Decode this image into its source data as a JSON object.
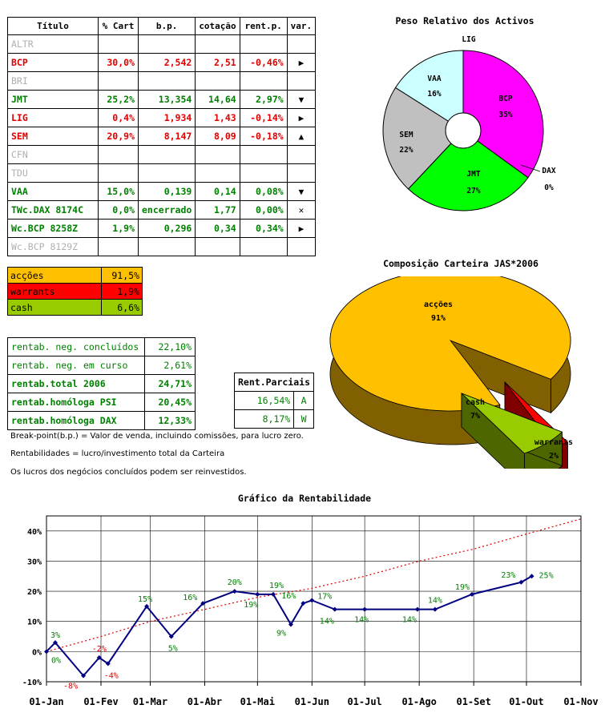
{
  "portfolio": {
    "headers": [
      "Título",
      "% Cart",
      "b.p.",
      "cotação",
      "rent.p.",
      "var."
    ],
    "rows": [
      {
        "name": "ALTR",
        "pct": "",
        "bp": "",
        "cot": "",
        "rent": "",
        "var": "",
        "style": "x"
      },
      {
        "name": "BCP",
        "pct": "30,0%",
        "bp": "2,542",
        "cot": "2,51",
        "rent": "-0,46%",
        "var": "▶",
        "style": "r"
      },
      {
        "name": "BRI",
        "pct": "",
        "bp": "",
        "cot": "",
        "rent": "",
        "var": "",
        "style": "x"
      },
      {
        "name": "JMT",
        "pct": "25,2%",
        "bp": "13,354",
        "cot": "14,64",
        "rent": "2,97%",
        "var": "▼",
        "style": "g"
      },
      {
        "name": "LIG",
        "pct": "0,4%",
        "bp": "1,934",
        "cot": "1,43",
        "rent": "-0,14%",
        "var": "▶",
        "style": "r"
      },
      {
        "name": "SEM",
        "pct": "20,9%",
        "bp": "8,147",
        "cot": "8,09",
        "rent": "-0,18%",
        "var": "▲",
        "style": "r"
      },
      {
        "name": "CFN",
        "pct": "",
        "bp": "",
        "cot": "",
        "rent": "",
        "var": "",
        "style": "x"
      },
      {
        "name": "TDU",
        "pct": "",
        "bp": "",
        "cot": "",
        "rent": "",
        "var": "",
        "style": "x"
      },
      {
        "name": "VAA",
        "pct": "15,0%",
        "bp": "0,139",
        "cot": "0,14",
        "rent": "0,08%",
        "var": "▼",
        "style": "g"
      },
      {
        "name": "TWc.DAX 8174C",
        "pct": "0,0%",
        "bp": "encerrado",
        "cot": "1,77",
        "rent": "0,00%",
        "var": "✕",
        "style": "g"
      },
      {
        "name": "Wc.BCP 8258Z",
        "pct": "1,9%",
        "bp": "0,296",
        "cot": "0,34",
        "rent": "0,34%",
        "var": "▶",
        "style": "g"
      },
      {
        "name": "Wc.BCP 8129Z",
        "pct": "",
        "bp": "",
        "cot": "",
        "rent": "",
        "var": "",
        "style": "x"
      }
    ]
  },
  "allocation": [
    {
      "label": "acções",
      "value": "91,5%",
      "color": "#ffc000"
    },
    {
      "label": "warrants",
      "value": "1,9%",
      "color": "#ff0000"
    },
    {
      "label": "cash",
      "value": "6,6%",
      "color": "#99cc00"
    }
  ],
  "rentab": [
    {
      "label": "rentab. neg. concluídos",
      "value": "22,10%",
      "bold": false
    },
    {
      "label": "rentab. neg. em curso",
      "value": "2,61%",
      "bold": false
    },
    {
      "label": "rentab.total 2006",
      "value": "24,71%",
      "bold": true
    },
    {
      "label": "rentab.homóloga PSI",
      "value": "20,45%",
      "bold": true
    },
    {
      "label": "rentab.homóloga DAX",
      "value": "12,33%",
      "bold": true
    }
  ],
  "parciais": {
    "header": "Rent.Parciais",
    "rows": [
      {
        "value": "16,54%",
        "tag": "A"
      },
      {
        "value": "8,17%",
        "tag": "W"
      }
    ]
  },
  "notes": [
    "Break-point(b.p.) = Valor de venda, incluindo comissões, para lucro zero.",
    "Rentabilidades = lucro/investimento total da Carteira",
    "Os lucros dos negócios concluídos podem ser reinvestidos."
  ],
  "chart_data": [
    {
      "type": "pie",
      "title": "Peso Relativo dos Activos",
      "labels": [
        "LIG",
        "BCP",
        "DAX",
        "JMT",
        "SEM",
        "VAA"
      ],
      "values": [
        0,
        35,
        0,
        27,
        22,
        16
      ],
      "value_labels": [
        "0%",
        "35%",
        "0%",
        "27%",
        "22%",
        "16%"
      ],
      "colors": [
        "#ff99cc",
        "#ff00ff",
        "#ffcc00",
        "#00ff00",
        "#c0c0c0",
        "#ccffff"
      ],
      "donut": true
    },
    {
      "type": "pie",
      "title": "Composição Carteira JAS*2006",
      "labels": [
        "acções",
        "warrants",
        "cash"
      ],
      "values": [
        91,
        2,
        7
      ],
      "value_labels": [
        "91%",
        "2%",
        "7%"
      ],
      "colors": [
        "#ffc000",
        "#ff0000",
        "#99cc00"
      ],
      "style": "3d-exploded"
    },
    {
      "type": "line",
      "title": "Gráfico da Rentabilidade",
      "x_ticks": [
        "01-Jan",
        "01-Fev",
        "01-Mar",
        "01-Abr",
        "01-Mai",
        "01-Jun",
        "01-Jul",
        "01-Ago",
        "01-Set",
        "01-Out",
        "01-Nov"
      ],
      "y_ticks": [
        "-10%",
        "0%",
        "10%",
        "20%",
        "30%",
        "40%"
      ],
      "ylim": [
        -10,
        45
      ],
      "grid": true,
      "series": [
        {
          "name": "",
          "color": "#000080",
          "points": [
            {
              "x": "2006-01-01",
              "y": 0,
              "label": "0%"
            },
            {
              "x": "2006-01-06",
              "y": 3,
              "label": "3%"
            },
            {
              "x": "2006-01-22",
              "y": -8,
              "label": "-8%"
            },
            {
              "x": "2006-01-31",
              "y": -2,
              "label": "-2%"
            },
            {
              "x": "2006-02-05",
              "y": -4,
              "label": "-4%"
            },
            {
              "x": "2006-02-27",
              "y": 15,
              "label": "15%"
            },
            {
              "x": "2006-03-13",
              "y": 5,
              "label": "5%"
            },
            {
              "x": "2006-03-31",
              "y": 16,
              "label": "16%"
            },
            {
              "x": "2006-04-18",
              "y": 20,
              "label": "20%"
            },
            {
              "x": "2006-05-01",
              "y": 19,
              "label": "19%"
            },
            {
              "x": "2006-05-10",
              "y": 19,
              "label": "19%"
            },
            {
              "x": "2006-05-20",
              "y": 9,
              "label": "9%"
            },
            {
              "x": "2006-05-27",
              "y": 16,
              "label": "16%"
            },
            {
              "x": "2006-06-01",
              "y": 17,
              "label": "17%"
            },
            {
              "x": "2006-06-14",
              "y": 14,
              "label": "14%"
            },
            {
              "x": "2006-07-01",
              "y": 14,
              "label": "14%"
            },
            {
              "x": "2006-07-31",
              "y": 14,
              "label": "14%"
            },
            {
              "x": "2006-08-10",
              "y": 14,
              "label": "14%"
            },
            {
              "x": "2006-08-31",
              "y": 19,
              "label": "19%"
            },
            {
              "x": "2006-09-28",
              "y": 23,
              "label": "23%"
            },
            {
              "x": "2006-10-04",
              "y": 25,
              "label": "25%"
            }
          ]
        },
        {
          "name": "",
          "color": "#e00000",
          "style": "dotted",
          "points": [
            {
              "x": "2006-01-01",
              "y": 0
            },
            {
              "x": "2006-02-01",
              "y": 5
            },
            {
              "x": "2006-03-01",
              "y": 10
            },
            {
              "x": "2006-04-01",
              "y": 14
            },
            {
              "x": "2006-05-01",
              "y": 18
            },
            {
              "x": "2006-06-01",
              "y": 21
            },
            {
              "x": "2006-07-01",
              "y": 25
            },
            {
              "x": "2006-08-01",
              "y": 30
            },
            {
              "x": "2006-09-01",
              "y": 34
            },
            {
              "x": "2006-10-01",
              "y": 39
            },
            {
              "x": "2006-11-01",
              "y": 44
            }
          ]
        }
      ],
      "label_colors": {
        "positive": "#008000",
        "negative": "#e00000"
      }
    }
  ]
}
